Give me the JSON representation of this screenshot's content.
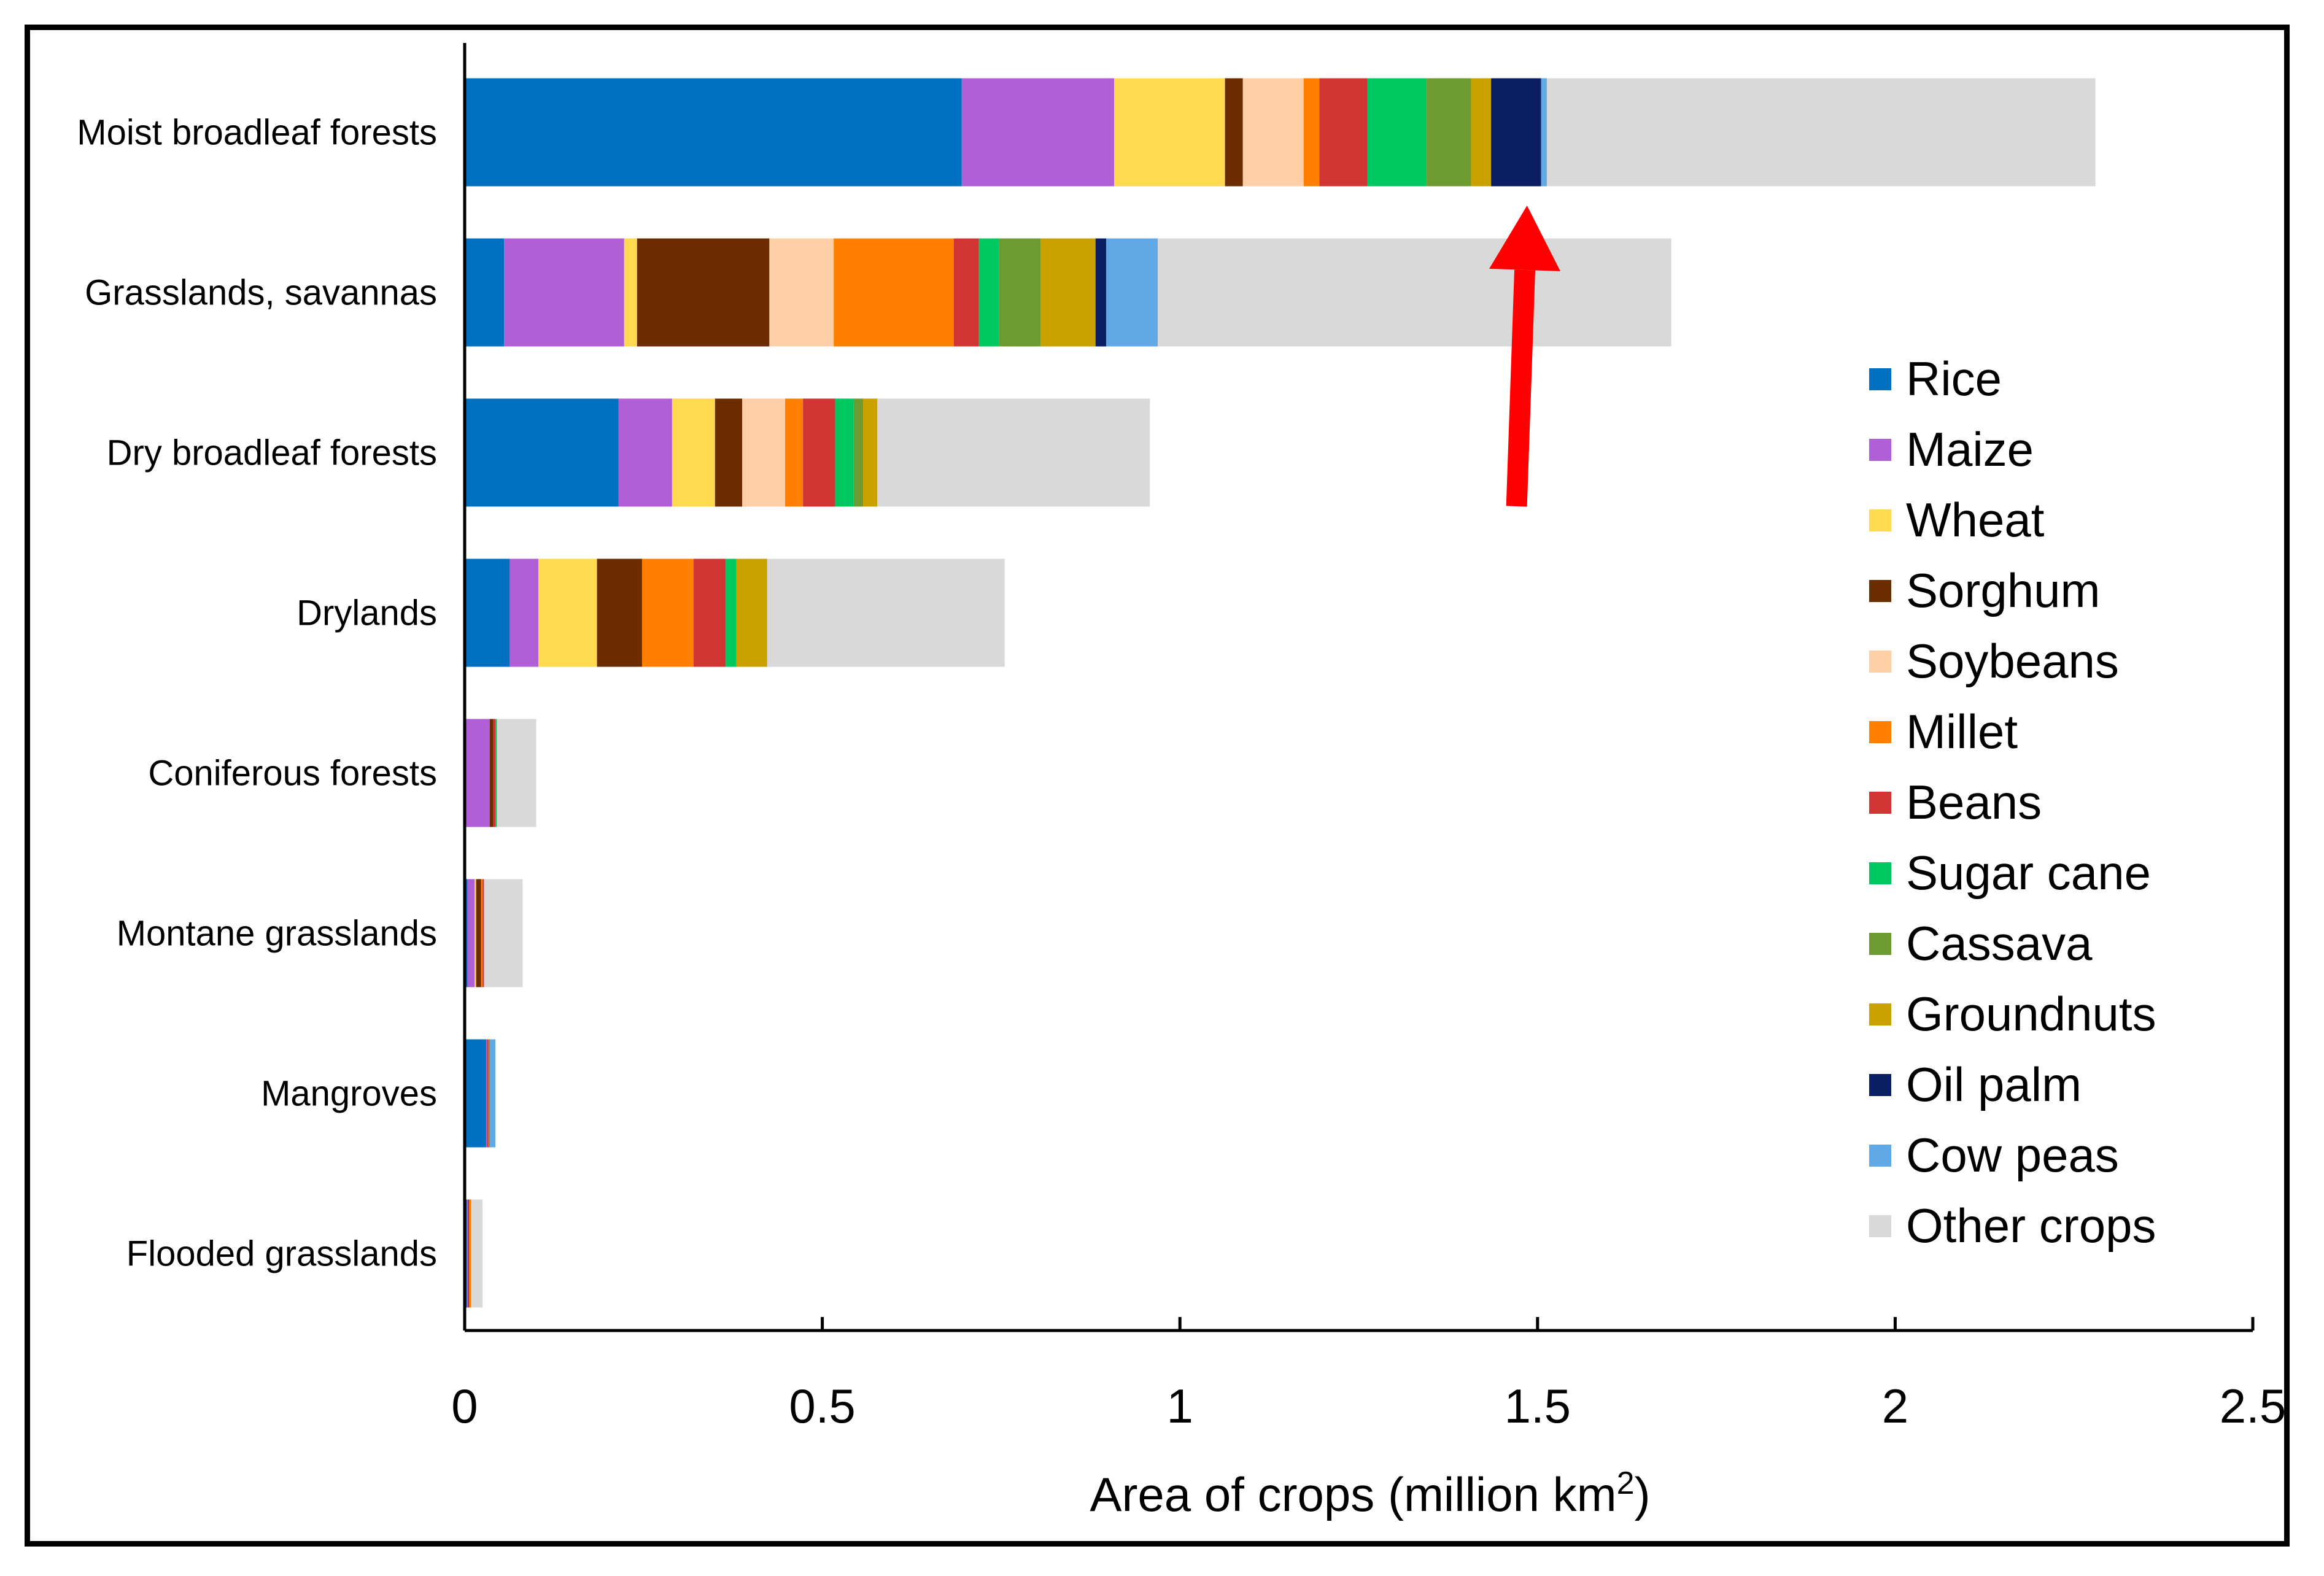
{
  "chart_data": {
    "type": "bar",
    "orientation": "horizontal",
    "stacked": true,
    "title": "",
    "xlabel": "Area of crops (million km",
    "xlabel_superscript": "2",
    "xlabel_suffix": ")",
    "ylabel": "",
    "xlim": [
      0,
      2.5
    ],
    "x_ticks": [
      0,
      0.5,
      1,
      1.5,
      2,
      2.5
    ],
    "x_tick_labels": [
      "0",
      "0.5",
      "1",
      "1.5",
      "2",
      "2.5"
    ],
    "grid": false,
    "legend_position": "right",
    "categories": [
      "Moist broadleaf forests",
      "Grasslands, savannas",
      "Dry broadleaf forests",
      "Drylands",
      "Coniferous forests",
      "Montane grasslands",
      "Mangroves",
      "Flooded grasslands"
    ],
    "series": [
      {
        "name": "Rice",
        "color": "#0070c0",
        "values": [
          0.695,
          0.055,
          0.215,
          0.063,
          0.0,
          0.004,
          0.03,
          0.003
        ]
      },
      {
        "name": "Maize",
        "color": "#b05fd6",
        "values": [
          0.213,
          0.168,
          0.075,
          0.04,
          0.035,
          0.01,
          0.002,
          0.002
        ]
      },
      {
        "name": "Wheat",
        "color": "#ffd94f",
        "values": [
          0.155,
          0.018,
          0.06,
          0.082,
          0.0,
          0.002,
          0.0,
          0.0
        ]
      },
      {
        "name": "Sorghum",
        "color": "#6b2c00",
        "values": [
          0.025,
          0.185,
          0.038,
          0.063,
          0.005,
          0.007,
          0.001,
          0.001
        ]
      },
      {
        "name": "Soybeans",
        "color": "#ffcfa8",
        "values": [
          0.085,
          0.09,
          0.06,
          0.0,
          0.0,
          0.0,
          0.0,
          0.0
        ]
      },
      {
        "name": "Millet",
        "color": "#ff8000",
        "values": [
          0.022,
          0.168,
          0.025,
          0.072,
          0.0,
          0.002,
          0.001,
          0.003
        ]
      },
      {
        "name": "Beans",
        "color": "#d03534",
        "values": [
          0.067,
          0.035,
          0.045,
          0.045,
          0.003,
          0.002,
          0.001,
          0.0
        ]
      },
      {
        "name": "Sugar cane",
        "color": "#00c860",
        "values": [
          0.083,
          0.028,
          0.026,
          0.015,
          0.002,
          0.0,
          0.0,
          0.0
        ]
      },
      {
        "name": "Cassava",
        "color": "#6e9a32",
        "values": [
          0.062,
          0.058,
          0.013,
          0.0,
          0.0,
          0.0,
          0.0,
          0.0
        ]
      },
      {
        "name": "Groundnuts",
        "color": "#c9a200",
        "values": [
          0.028,
          0.077,
          0.02,
          0.043,
          0.0,
          0.0,
          0.0,
          0.0
        ]
      },
      {
        "name": "Oil palm",
        "color": "#0a1f63",
        "values": [
          0.07,
          0.015,
          0.0,
          0.0,
          0.0,
          0.0,
          0.0,
          0.0
        ]
      },
      {
        "name": "Cow peas",
        "color": "#61a9e6",
        "values": [
          0.008,
          0.072,
          0.0,
          0.0,
          0.0,
          0.0,
          0.008,
          0.0
        ]
      },
      {
        "name": "Other crops",
        "color": "#d9d9d9",
        "values": [
          0.767,
          0.718,
          0.381,
          0.332,
          0.055,
          0.054,
          0.0,
          0.016
        ]
      }
    ],
    "annotations": [
      {
        "type": "arrow",
        "color": "#ff0000",
        "points_to_category": "Moist broadleaf forests",
        "points_to_x": 1.475
      }
    ]
  }
}
